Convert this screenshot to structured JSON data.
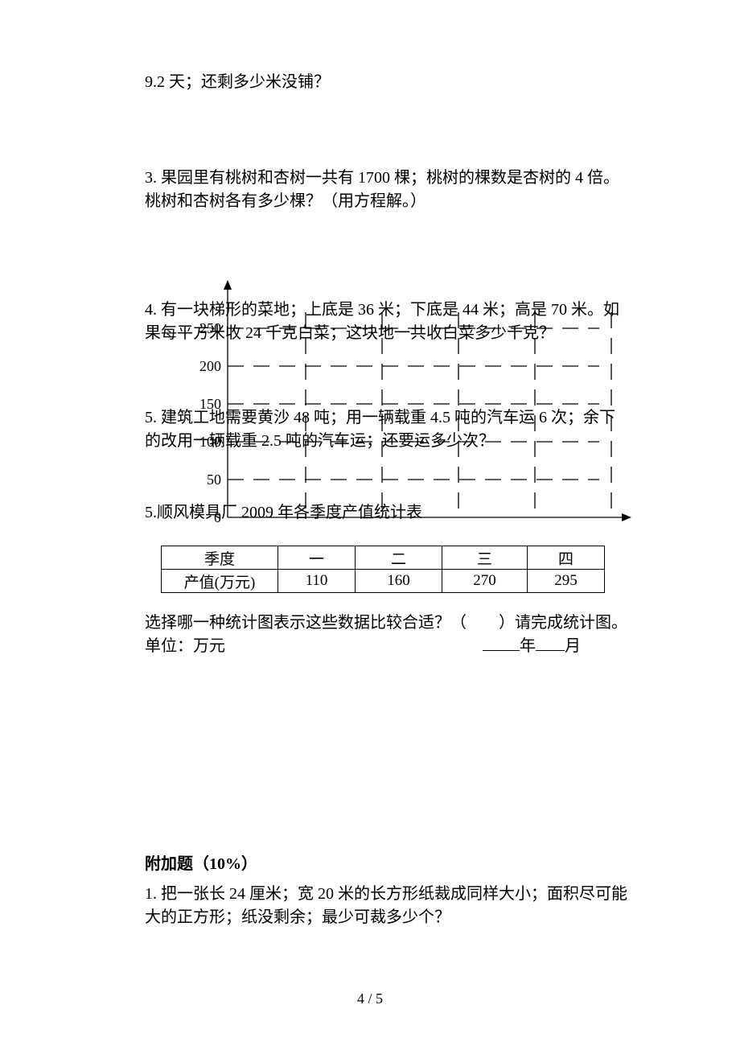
{
  "q_top": "9.2 天；还剩多少米没铺？",
  "q3": "3.  果园里有桃树和杏树一共有 1700 棵；桃树的棵数是杏树的 4 倍。桃树和杏树各有多少棵？（用方程解。）",
  "q4": "4.  有一块梯形的菜地；上底是 36 米；下底是 44 米；高是 70 米。如果每平方米收 24 千克白菜；这块地一共收白菜多少千克？",
  "q5": "5.  建筑工地需要黄沙 48 吨；用一辆载重 4.5 吨的汽车运 6 次；余下的改用一辆载重 2.5 吨的汽车运；还要运多少次？",
  "q5b": "5.顺风模具厂 2009 年各季度产值统计表",
  "chart": {
    "y_ticks": [
      0,
      50,
      100,
      150,
      200,
      250
    ],
    "grid_color": "#000000",
    "label_fontsize": 18
  },
  "table": {
    "head": [
      "季度",
      "一",
      "二",
      "三",
      "四"
    ],
    "row": [
      "产值(万元)",
      "110",
      "160",
      "270",
      "295"
    ]
  },
  "after1": "选择哪一种统计图表示这些数据比较合适？（　　）请完成统计图。",
  "after2_unit": "单位：万元",
  "after2_year": "年",
  "after2_month": "月",
  "bonus_title": "附加题（10%）",
  "bonus_q1": "1.  把一张长 24 厘米；宽 20 米的长方形纸裁成同样大小；面积尽可能大的正方形；纸没剩余；最少可裁多少个？",
  "footer": "4 / 5"
}
